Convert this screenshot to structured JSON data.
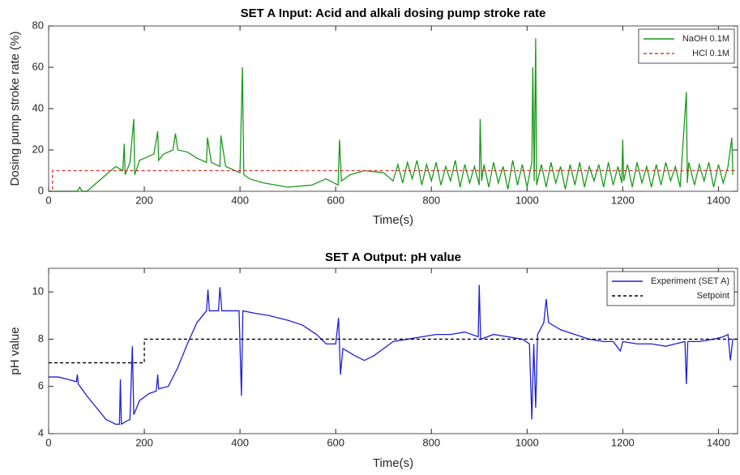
{
  "chart_data": [
    {
      "type": "line",
      "title": "SET A Input: Acid and alkali dosing pump stroke rate",
      "xlabel": "Time(s)",
      "ylabel": "Dosing pump stroke rate (%)",
      "xlim": [
        0,
        1440
      ],
      "ylim": [
        0,
        80
      ],
      "xticks": [
        0,
        200,
        400,
        600,
        800,
        1000,
        1200,
        1400
      ],
      "yticks": [
        0,
        20,
        40,
        60,
        80
      ],
      "legend": "upper right",
      "series": [
        {
          "name": "NaOH 0.1M",
          "color": "#1a9a1a",
          "style": "solid",
          "x": [
            0,
            60,
            65,
            70,
            80,
            100,
            120,
            140,
            155,
            158,
            160,
            170,
            178,
            180,
            190,
            200,
            220,
            228,
            230,
            240,
            260,
            265,
            270,
            290,
            310,
            330,
            332,
            340,
            358,
            360,
            370,
            390,
            400,
            405,
            408,
            420,
            450,
            500,
            550,
            580,
            605,
            608,
            612,
            630,
            660,
            700,
            720,
            730,
            740,
            750,
            760,
            770,
            780,
            790,
            800,
            810,
            820,
            830,
            840,
            850,
            860,
            870,
            880,
            890,
            900,
            902,
            905,
            910,
            920,
            930,
            940,
            950,
            960,
            970,
            980,
            990,
            1000,
            1010,
            1012,
            1015,
            1018,
            1020,
            1030,
            1040,
            1050,
            1060,
            1070,
            1080,
            1090,
            1100,
            1110,
            1120,
            1130,
            1140,
            1150,
            1160,
            1170,
            1180,
            1190,
            1198,
            1200,
            1202,
            1210,
            1220,
            1230,
            1240,
            1250,
            1260,
            1270,
            1280,
            1290,
            1300,
            1310,
            1320,
            1333,
            1335,
            1338,
            1350,
            1360,
            1370,
            1380,
            1390,
            1400,
            1410,
            1420,
            1428,
            1430
          ],
          "values": [
            0,
            0,
            2,
            0,
            0,
            4,
            8,
            12,
            10,
            23,
            8,
            14,
            35,
            8,
            15,
            16,
            18,
            29,
            15,
            18,
            20,
            28,
            20,
            19,
            16,
            14,
            26,
            14,
            12,
            27,
            12,
            10,
            9,
            60,
            8,
            6,
            4,
            2,
            3,
            6,
            3,
            25,
            5,
            8,
            10,
            9,
            5,
            13,
            4,
            14,
            6,
            15,
            3,
            13,
            5,
            14,
            3,
            12,
            5,
            15,
            2,
            13,
            4,
            12,
            3,
            35,
            5,
            13,
            2,
            14,
            4,
            12,
            1,
            15,
            3,
            13,
            2,
            14,
            60,
            5,
            74,
            3,
            13,
            2,
            14,
            4,
            12,
            1,
            13,
            3,
            14,
            2,
            12,
            5,
            13,
            2,
            14,
            3,
            12,
            4,
            25,
            5,
            13,
            2,
            14,
            4,
            12,
            2,
            13,
            3,
            14,
            5,
            12,
            2,
            48,
            4,
            14,
            3,
            13,
            5,
            14,
            2,
            13,
            4,
            12,
            26,
            8
          ]
        },
        {
          "name": "HCl 0.1M",
          "color": "#e03030",
          "style": "dashed",
          "x": [
            0,
            8,
            8,
            1440
          ],
          "values": [
            0,
            0,
            10,
            10
          ]
        }
      ]
    },
    {
      "type": "line",
      "title": "SET A Output: pH value",
      "xlabel": "Time(s)",
      "ylabel": "pH value",
      "xlim": [
        0,
        1440
      ],
      "ylim": [
        4,
        11
      ],
      "xticks": [
        0,
        200,
        400,
        600,
        800,
        1000,
        1200,
        1400
      ],
      "yticks": [
        4,
        6,
        8,
        10
      ],
      "legend": "upper right",
      "series": [
        {
          "name": "Experiment (SET A)",
          "color": "#1f1fd6",
          "style": "solid",
          "x": [
            0,
            20,
            40,
            58,
            60,
            62,
            80,
            100,
            120,
            140,
            148,
            150,
            152,
            160,
            170,
            175,
            178,
            190,
            210,
            225,
            228,
            230,
            250,
            270,
            290,
            310,
            330,
            333,
            336,
            355,
            358,
            362,
            380,
            398,
            403,
            406,
            430,
            460,
            500,
            530,
            560,
            580,
            600,
            606,
            610,
            615,
            640,
            660,
            680,
            700,
            720,
            750,
            780,
            810,
            840,
            870,
            898,
            900,
            903,
            930,
            960,
            990,
            1005,
            1010,
            1014,
            1018,
            1022,
            1035,
            1040,
            1045,
            1070,
            1100,
            1130,
            1160,
            1180,
            1195,
            1200,
            1230,
            1260,
            1290,
            1310,
            1330,
            1333,
            1336,
            1360,
            1390,
            1410,
            1420,
            1425,
            1430
          ],
          "values": [
            6.4,
            6.4,
            6.3,
            6.2,
            6.5,
            6.1,
            5.6,
            5.1,
            4.6,
            4.4,
            4.4,
            6.3,
            4.4,
            4.5,
            4.6,
            7.7,
            4.8,
            5.4,
            5.7,
            5.8,
            6.5,
            5.9,
            6.0,
            6.8,
            7.8,
            8.7,
            9.2,
            10.1,
            9.2,
            9.2,
            10.2,
            9.2,
            9.2,
            9.2,
            5.6,
            9.2,
            9.1,
            9.0,
            8.8,
            8.6,
            8.2,
            7.8,
            7.8,
            8.9,
            6.5,
            7.6,
            7.3,
            7.1,
            7.3,
            7.6,
            7.9,
            8.0,
            8.1,
            8.2,
            8.2,
            8.3,
            8.1,
            10.3,
            8.0,
            8.2,
            8.1,
            8.0,
            7.8,
            4.6,
            7.8,
            5.1,
            8.2,
            8.7,
            9.7,
            8.7,
            8.4,
            8.2,
            8.0,
            7.9,
            7.9,
            7.5,
            7.9,
            7.8,
            7.8,
            7.7,
            7.8,
            7.9,
            6.1,
            7.9,
            7.9,
            8.0,
            8.1,
            8.2,
            7.1,
            8.0
          ]
        },
        {
          "name": "Setpoint",
          "color": "#000000",
          "style": "dashed",
          "x": [
            0,
            200,
            200,
            1440
          ],
          "values": [
            7,
            7,
            8,
            8
          ]
        }
      ]
    }
  ]
}
